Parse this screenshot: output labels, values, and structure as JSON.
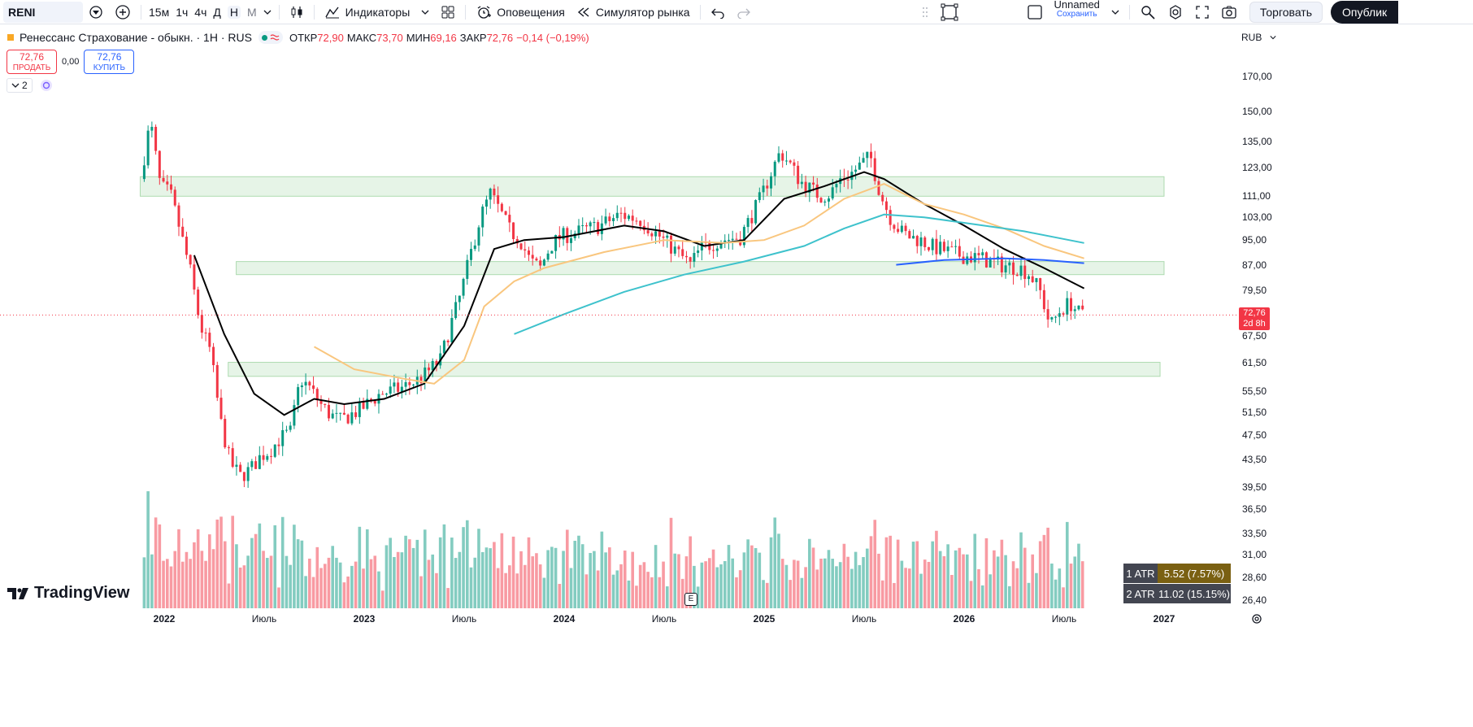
{
  "toolbar": {
    "symbol": "RENI",
    "intervals": [
      "15м",
      "1ч",
      "4ч",
      "Д",
      "Н",
      "М"
    ],
    "active_interval": "Н",
    "indicators_label": "Индикаторы",
    "alerts_label": "Оповещения",
    "replay_label": "Симулятор рынка",
    "layout_name": "Unnamed",
    "save_label": "Сохранить",
    "trade_label": "Торговать",
    "publish_label": "Опублик"
  },
  "legend": {
    "title": "Ренессанс Страхование - обыкн. · 1Н · RUS",
    "open_label": "ОТКР",
    "open": "72,90",
    "high_label": "МАКС",
    "high": "73,70",
    "low_label": "МИН",
    "low": "69,16",
    "close_label": "ЗАКР",
    "close": "72,76",
    "change": "−0,14 (−0,19%)"
  },
  "trade": {
    "sell_price": "72,76",
    "sell_label": "ПРОДАТЬ",
    "spread": "0,00",
    "buy_price": "72,76",
    "buy_label": "КУПИТЬ"
  },
  "collapse_count": "2",
  "currency": "RUB",
  "last_price": {
    "price": "72,76",
    "countdown": "2d 8h"
  },
  "atr": [
    {
      "name": "1 ATR",
      "value": "5.52 (7.57%)"
    },
    {
      "name": "2 ATR",
      "value": "11.02 (15.15%)"
    }
  ],
  "logo_text": "TradingView",
  "earnings_badge": "E",
  "colors": {
    "up": "#089981",
    "down": "#f23645",
    "accent": "#2962ff",
    "zone": "#c8e6c9"
  },
  "chart_data": {
    "type": "candlestick",
    "scale": "log",
    "price_ticks": [
      "170,00",
      "150,00",
      "135,00",
      "123,00",
      "111,00",
      "103,00",
      "95,00",
      "87,00",
      "79,50",
      "72,50",
      "67,50",
      "61,50",
      "55,50",
      "51,50",
      "47,50",
      "43,50",
      "39,50",
      "36,50",
      "33,50",
      "31,00",
      "28,60",
      "26,40"
    ],
    "time_ticks": [
      "2022",
      "Июль",
      "2023",
      "Июль",
      "2024",
      "Июль",
      "2025",
      "Июль",
      "2026",
      "Июль",
      "2027"
    ],
    "ohlc_path": [
      [
        2021.9,
        118
      ],
      [
        2021.95,
        145
      ],
      [
        2022.0,
        115
      ],
      [
        2022.05,
        112
      ],
      [
        2022.1,
        98
      ],
      [
        2022.15,
        85
      ],
      [
        2022.2,
        70
      ],
      [
        2022.25,
        64
      ],
      [
        2022.3,
        50
      ],
      [
        2022.35,
        43
      ],
      [
        2022.4,
        41
      ],
      [
        2022.45,
        42
      ],
      [
        2022.5,
        44
      ],
      [
        2022.55,
        45
      ],
      [
        2022.6,
        47
      ],
      [
        2022.65,
        48
      ],
      [
        2022.7,
        58
      ],
      [
        2022.75,
        56
      ],
      [
        2022.8,
        53
      ],
      [
        2022.85,
        51
      ],
      [
        2022.9,
        50
      ],
      [
        2022.95,
        51
      ],
      [
        2023.0,
        52
      ],
      [
        2023.1,
        55
      ],
      [
        2023.2,
        56
      ],
      [
        2023.3,
        58
      ],
      [
        2023.4,
        62
      ],
      [
        2023.45,
        70
      ],
      [
        2023.5,
        78
      ],
      [
        2023.55,
        90
      ],
      [
        2023.6,
        103
      ],
      [
        2023.65,
        112
      ],
      [
        2023.7,
        105
      ],
      [
        2023.75,
        98
      ],
      [
        2023.8,
        95
      ],
      [
        2023.85,
        88
      ],
      [
        2023.9,
        86
      ],
      [
        2023.95,
        93
      ],
      [
        2024.0,
        96
      ],
      [
        2024.1,
        98
      ],
      [
        2024.2,
        100
      ],
      [
        2024.3,
        104
      ],
      [
        2024.4,
        102
      ],
      [
        2024.5,
        96
      ],
      [
        2024.6,
        90
      ],
      [
        2024.65,
        87
      ],
      [
        2024.7,
        92
      ],
      [
        2024.8,
        95
      ],
      [
        2024.9,
        96
      ],
      [
        2025.0,
        110
      ],
      [
        2025.05,
        120
      ],
      [
        2025.1,
        130
      ],
      [
        2025.15,
        124
      ],
      [
        2025.2,
        117
      ],
      [
        2025.25,
        114
      ],
      [
        2025.3,
        111
      ],
      [
        2025.35,
        112
      ],
      [
        2025.4,
        118
      ],
      [
        2025.45,
        120
      ],
      [
        2025.5,
        124
      ],
      [
        2025.55,
        128
      ],
      [
        2025.6,
        112
      ],
      [
        2025.65,
        103
      ],
      [
        2025.7,
        98
      ],
      [
        2025.75,
        96
      ],
      [
        2025.8,
        95
      ],
      [
        2025.85,
        93
      ],
      [
        2025.9,
        92
      ],
      [
        2025.95,
        91
      ],
      [
        2026.0,
        90
      ],
      [
        2026.1,
        89
      ],
      [
        2026.2,
        87
      ],
      [
        2026.3,
        86
      ],
      [
        2026.35,
        84
      ],
      [
        2026.4,
        79
      ],
      [
        2026.45,
        70
      ],
      [
        2026.5,
        74
      ],
      [
        2026.55,
        76
      ],
      [
        2026.6,
        72.76
      ]
    ],
    "sma_series": [
      {
        "name": "",
        "color": "#000000",
        "points": [
          [
            2022.15,
            90
          ],
          [
            2022.3,
            68
          ],
          [
            2022.45,
            55
          ],
          [
            2022.6,
            51
          ],
          [
            2022.75,
            54
          ],
          [
            2022.9,
            53
          ],
          [
            2023.1,
            54
          ],
          [
            2023.3,
            57
          ],
          [
            2023.5,
            70
          ],
          [
            2023.65,
            92
          ],
          [
            2023.8,
            95
          ],
          [
            2024.0,
            96
          ],
          [
            2024.3,
            100
          ],
          [
            2024.5,
            98
          ],
          [
            2024.7,
            93
          ],
          [
            2024.9,
            95
          ],
          [
            2025.1,
            110
          ],
          [
            2025.3,
            115
          ],
          [
            2025.5,
            121
          ],
          [
            2025.6,
            118
          ],
          [
            2025.8,
            108
          ],
          [
            2026.0,
            100
          ],
          [
            2026.2,
            92
          ],
          [
            2026.4,
            86
          ],
          [
            2026.6,
            80
          ]
        ]
      },
      {
        "name": "",
        "color": "#f9c67e",
        "points": [
          [
            2022.75,
            65
          ],
          [
            2022.95,
            60
          ],
          [
            2023.2,
            58
          ],
          [
            2023.35,
            57
          ],
          [
            2023.5,
            62
          ],
          [
            2023.6,
            75
          ],
          [
            2023.75,
            82
          ],
          [
            2023.9,
            86
          ],
          [
            2024.2,
            91
          ],
          [
            2024.5,
            95
          ],
          [
            2024.8,
            94
          ],
          [
            2025.0,
            95
          ],
          [
            2025.2,
            100
          ],
          [
            2025.4,
            110
          ],
          [
            2025.6,
            116
          ],
          [
            2025.8,
            108
          ],
          [
            2026.0,
            104
          ],
          [
            2026.2,
            99
          ],
          [
            2026.4,
            93
          ],
          [
            2026.6,
            89
          ]
        ]
      },
      {
        "name": "",
        "color": "#3ec2cc",
        "points": [
          [
            2023.75,
            68
          ],
          [
            2024.0,
            73
          ],
          [
            2024.3,
            79
          ],
          [
            2024.6,
            84
          ],
          [
            2024.9,
            88
          ],
          [
            2025.2,
            93
          ],
          [
            2025.4,
            99
          ],
          [
            2025.6,
            104
          ],
          [
            2025.8,
            103
          ],
          [
            2026.0,
            101
          ],
          [
            2026.3,
            98
          ],
          [
            2026.6,
            94
          ]
        ]
      },
      {
        "name": "",
        "color": "#2962ff",
        "points": [
          [
            2025.66,
            87
          ],
          [
            2025.9,
            88.5
          ],
          [
            2026.2,
            89
          ],
          [
            2026.4,
            88.5
          ],
          [
            2026.6,
            87.5
          ]
        ]
      }
    ],
    "zones": [
      {
        "from": 2021.88,
        "to": 2027.0,
        "low": 111,
        "high": 119
      },
      {
        "from": 2022.36,
        "to": 2027.0,
        "low": 84,
        "high": 88
      },
      {
        "from": 2022.32,
        "to": 2026.98,
        "low": 58.5,
        "high": 61.5
      }
    ],
    "current_price": 72.76,
    "ylim": [
      26.4,
      178
    ]
  }
}
